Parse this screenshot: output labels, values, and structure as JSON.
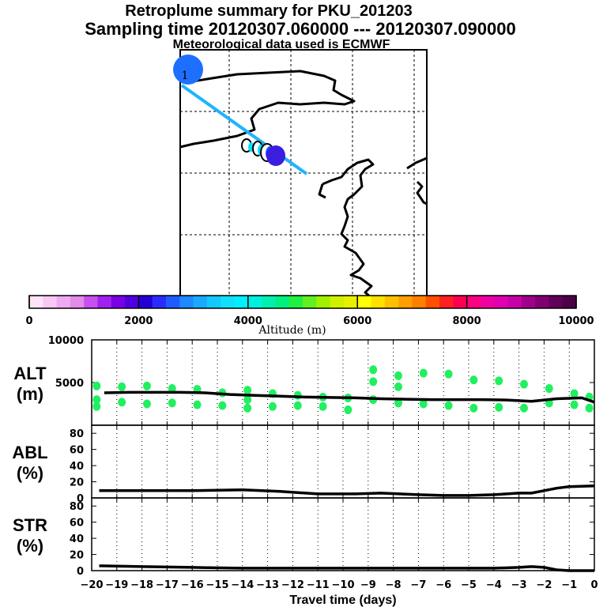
{
  "header": {
    "title": "Retroplume summary for PKU_201203",
    "sampling": "Sampling time   20120307.060000 --- 20120307.090000",
    "met": "Meteorological data used is ECMWF"
  },
  "map": {
    "source_label": "1",
    "source_color": "#1e6fff",
    "track_color": "#1eb4ff"
  },
  "colorbar": {
    "tick_labels": [
      "0",
      "2000",
      "4000",
      "6000",
      "8000",
      "10000"
    ],
    "xlabel": "Altitude (m)",
    "colors": [
      "#fde4fb",
      "#f7c8f3",
      "#eeaaf0",
      "#e38be8",
      "#c84ff0",
      "#a020f0",
      "#7a00e6",
      "#4e00e0",
      "#2400d8",
      "#2a2cff",
      "#1f5cff",
      "#1e88ff",
      "#18aaff",
      "#14c8ff",
      "#10e0ff",
      "#00f0ff",
      "#00f0e0",
      "#00f0b0",
      "#00f080",
      "#20f040",
      "#60f020",
      "#a0f000",
      "#d0f000",
      "#e8f000",
      "#ffff00",
      "#ffe000",
      "#ffc000",
      "#ffa000",
      "#ff8000",
      "#ff5000",
      "#ff2020",
      "#ff0050",
      "#ff0080",
      "#f000a0",
      "#e000b0",
      "#c800a8",
      "#a0008c",
      "#800070",
      "#600058",
      "#4c0048"
    ]
  },
  "chart_data": [
    {
      "name": "ALT",
      "type": "line",
      "ylabel": "ALT",
      "ylabel_unit": "(m)",
      "ylim": [
        0,
        10000
      ],
      "yticks": [
        0,
        5000,
        10000
      ],
      "ytick_labels": [
        "",
        "5000",
        "10000"
      ],
      "xlim": [
        -20,
        0
      ],
      "x": [
        -19.5,
        -18.5,
        -17.5,
        -16.5,
        -15.5,
        -14.5,
        -13.5,
        -12.5,
        -11.5,
        -10.5,
        -9.5,
        -8.5,
        -7.5,
        -6.5,
        -5.5,
        -4.5,
        -3.5,
        -2.5,
        -1.5,
        -0.5,
        0
      ],
      "values": [
        3800,
        3850,
        3850,
        3850,
        3800,
        3600,
        3500,
        3400,
        3300,
        3250,
        3200,
        3100,
        3050,
        3000,
        3000,
        3000,
        2950,
        2800,
        3100,
        3200,
        2700
      ],
      "scatter_x": [
        -19.8,
        -19.8,
        -19.8,
        -18.8,
        -18.8,
        -17.8,
        -17.8,
        -16.8,
        -16.8,
        -15.8,
        -15.8,
        -14.8,
        -14.8,
        -13.8,
        -13.8,
        -13.8,
        -12.8,
        -12.8,
        -11.8,
        -11.8,
        -10.8,
        -10.8,
        -9.8,
        -9.8,
        -8.8,
        -8.8,
        -8.8,
        -7.8,
        -7.8,
        -7.8,
        -6.8,
        -6.8,
        -5.8,
        -5.8,
        -4.8,
        -4.8,
        -3.8,
        -3.8,
        -2.8,
        -2.8,
        -1.8,
        -1.8,
        -0.8,
        -0.8,
        -0.2,
        -0.2
      ],
      "scatter_y": [
        4600,
        3000,
        2200,
        4500,
        2700,
        4600,
        2500,
        4300,
        2600,
        4200,
        2400,
        3800,
        2300,
        4100,
        3000,
        2000,
        3700,
        2200,
        3500,
        2300,
        3300,
        2200,
        3200,
        1800,
        3000,
        5100,
        6500,
        2600,
        4500,
        5800,
        2500,
        6100,
        2300,
        6000,
        2000,
        5300,
        2100,
        5200,
        2000,
        4800,
        2600,
        4300,
        2400,
        3700,
        2000,
        3300
      ],
      "scatter_color": "#20f060"
    },
    {
      "name": "ABL",
      "type": "line",
      "ylabel": "ABL",
      "ylabel_unit": "(%)",
      "ylim": [
        0,
        90
      ],
      "yticks": [
        0,
        20,
        40,
        60,
        80
      ],
      "ytick_labels": [
        "0",
        "20",
        "40",
        "60",
        "80"
      ],
      "xlim": [
        -20,
        0
      ],
      "x": [
        -19.7,
        -18,
        -16,
        -14,
        -12.5,
        -11,
        -9.5,
        -8.5,
        -7,
        -6,
        -5,
        -4,
        -3,
        -2.5,
        -2,
        -1.5,
        -1,
        0
      ],
      "values": [
        9,
        9,
        9,
        10,
        8,
        5,
        5,
        6,
        4,
        3,
        3,
        4,
        6,
        6,
        9,
        12,
        14,
        15
      ]
    },
    {
      "name": "STR",
      "type": "line",
      "ylabel": "STR",
      "ylabel_unit": "(%)",
      "ylim": [
        0,
        90
      ],
      "yticks": [
        0,
        20,
        40,
        60,
        80
      ],
      "ytick_labels": [
        "0",
        "20",
        "40",
        "60",
        "80"
      ],
      "xlim": [
        -20,
        0
      ],
      "x": [
        -19.7,
        -18,
        -16,
        -14,
        -12,
        -10,
        -8,
        -6,
        -4,
        -3,
        -2.5,
        -2,
        -1.5,
        -1,
        0
      ],
      "values": [
        6,
        5,
        4,
        3,
        3,
        3,
        3,
        3,
        3,
        4,
        5,
        4,
        1,
        0,
        0
      ],
      "xlabel": "Travel time (days)",
      "xtick_labels": [
        "−20",
        "−19",
        "−18",
        "−17",
        "−16",
        "−15",
        "−14",
        "−13",
        "−12",
        "−11",
        "−10",
        "−9",
        "−8",
        "−7",
        "−6",
        "−5",
        "−4",
        "−3",
        "−2",
        "−1",
        "0"
      ]
    }
  ]
}
